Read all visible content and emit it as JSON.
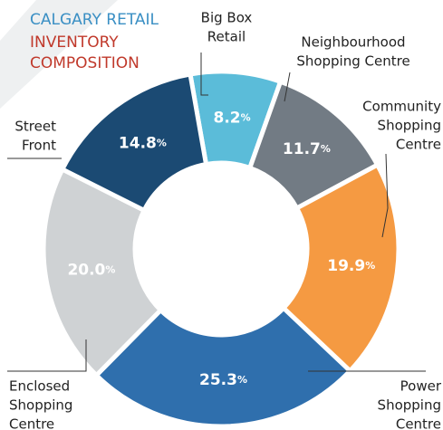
{
  "chart_data": {
    "type": "donut",
    "title": [
      "CALGARY RETAIL",
      "INVENTORY",
      "COMPOSITION"
    ],
    "categories": [
      [
        "Big Box",
        "Retail"
      ],
      [
        "Neighbourhood",
        "Shopping Centre"
      ],
      [
        "Community",
        "Shopping",
        "Centre"
      ],
      [
        "Power",
        "Shopping",
        "Centre"
      ],
      [
        "Enclosed",
        "Shopping",
        "Centre"
      ],
      [
        "Street",
        "Front"
      ]
    ],
    "values": [
      8.2,
      11.7,
      19.9,
      25.3,
      20.0,
      14.8
    ],
    "value_labels": [
      "8.2%",
      "11.7%",
      "19.9%",
      "25.3%",
      "20.0%",
      "14.8%"
    ],
    "colors": [
      "#5bbcd9",
      "#727b84",
      "#f59a42",
      "#2f6fad",
      "#cfd2d4",
      "#1b4a73"
    ]
  }
}
